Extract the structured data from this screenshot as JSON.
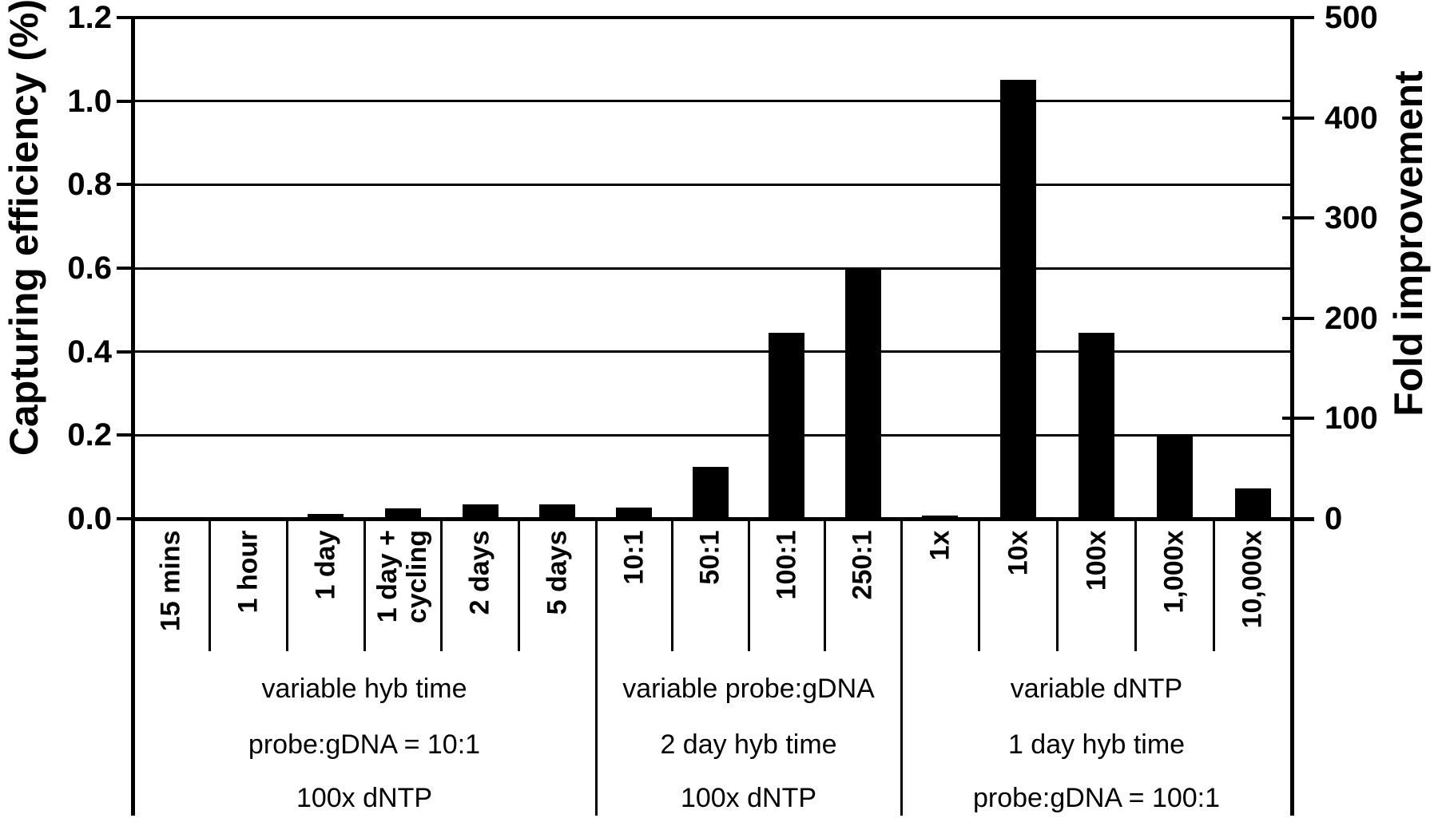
{
  "figure": {
    "background_color": "#ffffff",
    "bar_color": "#000000",
    "axis_color": "#000000"
  },
  "chart_data": {
    "type": "bar",
    "title": "",
    "ylabel_left": "Capturing efficiency (%)",
    "ylabel_right": "Fold improvement",
    "y_left_range": [
      0,
      1.2
    ],
    "y_left_ticks": [
      "1.2",
      "1.0",
      "0.8",
      "0.6",
      "0.4",
      "0.2",
      "0.0"
    ],
    "y_right_range": [
      0,
      500
    ],
    "y_right_ticks": [
      "500",
      "400",
      "300",
      "200",
      "100",
      "0"
    ],
    "grid": "horizontal gridlines at left-axis 0.2 intervals",
    "legend": "none",
    "series_color": "#000000",
    "groups": [
      {
        "annotation_lines": [
          "variable hyb time",
          "probe:gDNA = 10:1",
          "100x dNTP"
        ],
        "categories": [
          {
            "label_lines": [
              "15 mins"
            ],
            "value": 0
          },
          {
            "label_lines": [
              "1 hour"
            ],
            "value": 0
          },
          {
            "label_lines": [
              "1 day"
            ],
            "value": 0.012
          },
          {
            "label_lines": [
              "1 day +",
              "cycling"
            ],
            "value": 0.025
          },
          {
            "label_lines": [
              "2 days"
            ],
            "value": 0.034
          },
          {
            "label_lines": [
              "5 days"
            ],
            "value": 0.034
          }
        ]
      },
      {
        "annotation_lines": [
          "variable probe:gDNA",
          "2 day hyb time",
          "100x dNTP"
        ],
        "categories": [
          {
            "label_lines": [
              "10:1"
            ],
            "value": 0.027
          },
          {
            "label_lines": [
              "50:1"
            ],
            "value": 0.125
          },
          {
            "label_lines": [
              "100:1"
            ],
            "value": 0.445
          },
          {
            "label_lines": [
              "250:1"
            ],
            "value": 0.6
          }
        ]
      },
      {
        "annotation_lines": [
          "variable dNTP",
          "1 day hyb time",
          "probe:gDNA = 100:1"
        ],
        "categories": [
          {
            "label_lines": [
              "1x"
            ],
            "value": 0.008
          },
          {
            "label_lines": [
              "10x"
            ],
            "value": 1.05
          },
          {
            "label_lines": [
              "100x"
            ],
            "value": 0.445
          },
          {
            "label_lines": [
              "1,000x"
            ],
            "value": 0.2
          },
          {
            "label_lines": [
              "10,000x"
            ],
            "value": 0.073
          }
        ]
      }
    ],
    "values_unit": "capturing efficiency (%), left axis",
    "fold_improvement_equivalents": [
      [
        0,
        0,
        5,
        10,
        14,
        14
      ],
      [
        11,
        52,
        185,
        250
      ],
      [
        3,
        437,
        185,
        83,
        30
      ]
    ]
  }
}
